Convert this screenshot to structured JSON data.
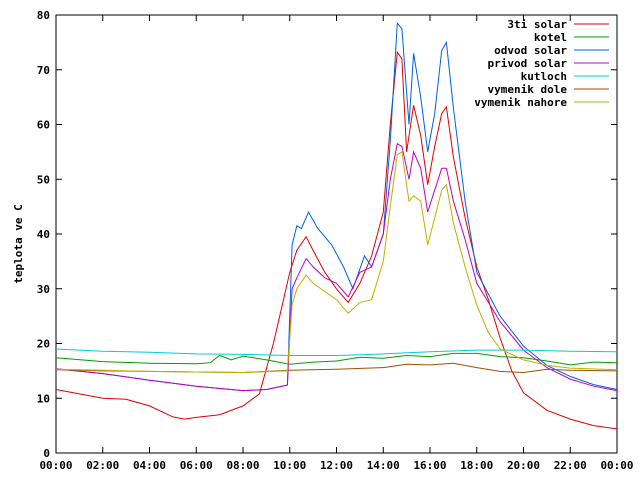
{
  "chart_data": {
    "type": "line",
    "title": "",
    "xlabel": "",
    "ylabel": "teplota ve C",
    "xlim": [
      0,
      24
    ],
    "ylim": [
      0,
      80
    ],
    "grid": false,
    "legend_position": "top-right",
    "x_ticks": [
      "00:00",
      "02:00",
      "04:00",
      "06:00",
      "08:00",
      "10:00",
      "12:00",
      "14:00",
      "16:00",
      "18:00",
      "20:00",
      "22:00",
      "00:00"
    ],
    "y_ticks": [
      "0",
      "10",
      "20",
      "30",
      "40",
      "50",
      "60",
      "70",
      "80"
    ],
    "series": [
      {
        "name": "3ti solar",
        "color": "#e00000",
        "points": [
          [
            0,
            11.6
          ],
          [
            1,
            10.8
          ],
          [
            2,
            10
          ],
          [
            3,
            9.8
          ],
          [
            4,
            8.6
          ],
          [
            5,
            6.6
          ],
          [
            5.5,
            6.2
          ],
          [
            6,
            6.5
          ],
          [
            7,
            7
          ],
          [
            8,
            8.6
          ],
          [
            8.7,
            10.8
          ],
          [
            9.3,
            20
          ],
          [
            10,
            33
          ],
          [
            10.3,
            37
          ],
          [
            10.7,
            39.5
          ],
          [
            11,
            37
          ],
          [
            11.5,
            33
          ],
          [
            12,
            30
          ],
          [
            12.5,
            27.5
          ],
          [
            13,
            31
          ],
          [
            13.5,
            36
          ],
          [
            14,
            44
          ],
          [
            14.3,
            60
          ],
          [
            14.6,
            73.2
          ],
          [
            14.8,
            72
          ],
          [
            15,
            55
          ],
          [
            15.3,
            63.5
          ],
          [
            15.6,
            58
          ],
          [
            15.9,
            49
          ],
          [
            16.2,
            56
          ],
          [
            16.5,
            62
          ],
          [
            16.7,
            63.2
          ],
          [
            17,
            54
          ],
          [
            17.5,
            43
          ],
          [
            18,
            34
          ],
          [
            18.5,
            28
          ],
          [
            19,
            21
          ],
          [
            19.5,
            15
          ],
          [
            20,
            11
          ],
          [
            21,
            7.8
          ],
          [
            22,
            6.2
          ],
          [
            23,
            5
          ],
          [
            24,
            4.4
          ]
        ]
      },
      {
        "name": "kotel",
        "color": "#00a000",
        "points": [
          [
            0,
            17.4
          ],
          [
            2,
            16.7
          ],
          [
            4,
            16.4
          ],
          [
            6,
            16.3
          ],
          [
            6.6,
            16.5
          ],
          [
            7,
            17.8
          ],
          [
            7.5,
            17
          ],
          [
            8,
            17.7
          ],
          [
            9,
            17
          ],
          [
            10,
            16.2
          ],
          [
            11,
            16.6
          ],
          [
            12,
            16.8
          ],
          [
            13,
            17.5
          ],
          [
            14,
            17.3
          ],
          [
            15,
            17.8
          ],
          [
            16,
            17.6
          ],
          [
            17,
            18.2
          ],
          [
            18,
            18.2
          ],
          [
            19,
            17.6
          ],
          [
            20,
            17.4
          ],
          [
            21,
            16.8
          ],
          [
            22,
            16.1
          ],
          [
            23,
            16.6
          ],
          [
            24,
            16.5
          ]
        ]
      },
      {
        "name": "odvod solar",
        "color": "#0060e0",
        "points": [
          [
            0,
            15.4
          ],
          [
            2,
            14.5
          ],
          [
            4,
            13.3
          ],
          [
            6,
            12.2
          ],
          [
            8,
            11.4
          ],
          [
            9,
            11.6
          ],
          [
            9.9,
            12.4
          ],
          [
            10.1,
            38
          ],
          [
            10.3,
            41.5
          ],
          [
            10.5,
            41
          ],
          [
            10.8,
            44
          ],
          [
            11.2,
            41
          ],
          [
            11.8,
            38
          ],
          [
            12.3,
            34
          ],
          [
            12.7,
            30
          ],
          [
            13.2,
            36
          ],
          [
            13.5,
            34
          ],
          [
            14,
            40
          ],
          [
            14.3,
            57
          ],
          [
            14.6,
            78.5
          ],
          [
            14.8,
            77.5
          ],
          [
            15.1,
            60
          ],
          [
            15.3,
            73
          ],
          [
            15.6,
            65
          ],
          [
            15.9,
            55
          ],
          [
            16.2,
            62
          ],
          [
            16.5,
            73.5
          ],
          [
            16.7,
            75
          ],
          [
            17,
            63
          ],
          [
            17.5,
            46
          ],
          [
            18,
            33
          ],
          [
            19,
            25
          ],
          [
            20,
            19.5
          ],
          [
            21,
            16
          ],
          [
            22,
            14
          ],
          [
            23,
            12.5
          ],
          [
            24,
            11.6
          ]
        ]
      },
      {
        "name": "privod solar",
        "color": "#c000c0",
        "points": [
          [
            0,
            15.4
          ],
          [
            2,
            14.5
          ],
          [
            4,
            13.3
          ],
          [
            6,
            12.2
          ],
          [
            8,
            11.4
          ],
          [
            9,
            11.6
          ],
          [
            9.9,
            12.4
          ],
          [
            10.1,
            30
          ],
          [
            10.3,
            32
          ],
          [
            10.7,
            35.5
          ],
          [
            11,
            34
          ],
          [
            11.5,
            32
          ],
          [
            12,
            31
          ],
          [
            12.5,
            28.5
          ],
          [
            13,
            33
          ],
          [
            13.5,
            34
          ],
          [
            14,
            40
          ],
          [
            14.3,
            50
          ],
          [
            14.6,
            56.5
          ],
          [
            14.8,
            56
          ],
          [
            15.1,
            50
          ],
          [
            15.3,
            55
          ],
          [
            15.6,
            52
          ],
          [
            15.9,
            44
          ],
          [
            16.2,
            48
          ],
          [
            16.5,
            52
          ],
          [
            16.7,
            52
          ],
          [
            17,
            46
          ],
          [
            17.5,
            39
          ],
          [
            18,
            31
          ],
          [
            19,
            24
          ],
          [
            20,
            18.8
          ],
          [
            21,
            15.6
          ],
          [
            22,
            13.5
          ],
          [
            23,
            12.2
          ],
          [
            24,
            11.4
          ]
        ]
      },
      {
        "name": "kutloch",
        "color": "#00d0d0",
        "points": [
          [
            0,
            19
          ],
          [
            2,
            18.6
          ],
          [
            4,
            18.4
          ],
          [
            6,
            18.1
          ],
          [
            8,
            18
          ],
          [
            10,
            17.8
          ],
          [
            12,
            17.8
          ],
          [
            14,
            18.1
          ],
          [
            16,
            18.5
          ],
          [
            18,
            18.8
          ],
          [
            20,
            18.8
          ],
          [
            22,
            18.6
          ],
          [
            24,
            18.5
          ]
        ]
      },
      {
        "name": "vymenik dole",
        "color": "#a05000",
        "points": [
          [
            0,
            15.2
          ],
          [
            2,
            15
          ],
          [
            4,
            14.9
          ],
          [
            6,
            14.8
          ],
          [
            8,
            14.7
          ],
          [
            10,
            15.1
          ],
          [
            12,
            15.3
          ],
          [
            14,
            15.6
          ],
          [
            15,
            16.2
          ],
          [
            16,
            16.1
          ],
          [
            17,
            16.4
          ],
          [
            18,
            15.6
          ],
          [
            19,
            14.9
          ],
          [
            20,
            14.7
          ],
          [
            21,
            15.3
          ],
          [
            22,
            15.1
          ],
          [
            24,
            15.0
          ]
        ]
      },
      {
        "name": "vymenik nahore",
        "color": "#c0b000",
        "points": [
          [
            0,
            15.3
          ],
          [
            2,
            15.1
          ],
          [
            4,
            14.9
          ],
          [
            6,
            14.8
          ],
          [
            8,
            14.7
          ],
          [
            9.9,
            15
          ],
          [
            10.1,
            27
          ],
          [
            10.3,
            30
          ],
          [
            10.7,
            32.5
          ],
          [
            11,
            31
          ],
          [
            11.5,
            29.5
          ],
          [
            12,
            28
          ],
          [
            12.5,
            25.5
          ],
          [
            13,
            27.5
          ],
          [
            13.5,
            28
          ],
          [
            14,
            35
          ],
          [
            14.3,
            45
          ],
          [
            14.6,
            54.5
          ],
          [
            14.8,
            55
          ],
          [
            15.1,
            46
          ],
          [
            15.3,
            47
          ],
          [
            15.6,
            46
          ],
          [
            15.9,
            38
          ],
          [
            16.2,
            43
          ],
          [
            16.5,
            48
          ],
          [
            16.7,
            49
          ],
          [
            17,
            42
          ],
          [
            17.5,
            34
          ],
          [
            18,
            27
          ],
          [
            18.5,
            22
          ],
          [
            19,
            19
          ],
          [
            20,
            17
          ],
          [
            21,
            16
          ],
          [
            22,
            15.5
          ],
          [
            24,
            15.2
          ]
        ]
      }
    ]
  }
}
